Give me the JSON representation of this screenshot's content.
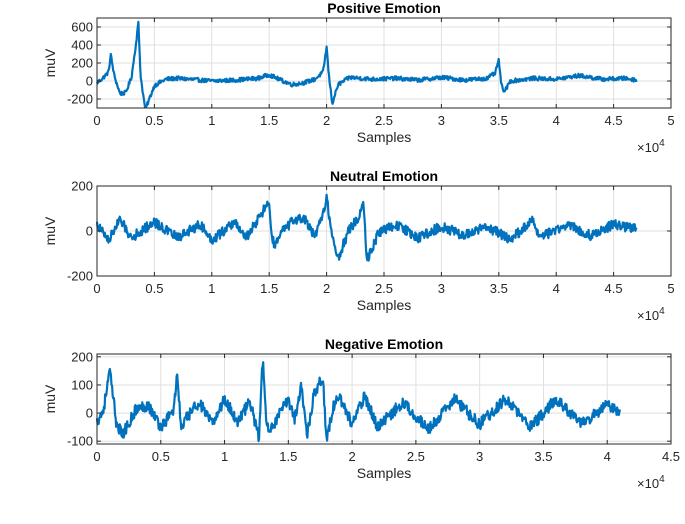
{
  "chart_data": [
    {
      "type": "line",
      "title": "Positive Emotion",
      "xlabel": "Samples",
      "ylabel": "muV",
      "x_multiplier": "×10",
      "x_multiplier_exp": "4",
      "xlim": [
        0,
        5
      ],
      "ylim": [
        -300,
        700
      ],
      "xticks": [
        "0",
        "0.5",
        "1",
        "1.5",
        "2",
        "2.5",
        "3",
        "3.5",
        "4",
        "4.5",
        "5"
      ],
      "yticks": [
        "-200",
        "0",
        "200",
        "400",
        "600"
      ],
      "grid": true,
      "color": "#0072BD",
      "series": [
        {
          "x_end": 4.7,
          "x": [
            0,
            0.05,
            0.1,
            0.12,
            0.15,
            0.2,
            0.25,
            0.3,
            0.34,
            0.36,
            0.38,
            0.42,
            0.5,
            0.6,
            0.7,
            0.8,
            1.0,
            1.2,
            1.4,
            1.5,
            1.6,
            1.7,
            1.8,
            1.9,
            1.97,
            2.0,
            2.02,
            2.05,
            2.1,
            2.2,
            2.4,
            2.6,
            2.8,
            3.0,
            3.2,
            3.4,
            3.47,
            3.5,
            3.52,
            3.55,
            3.6,
            3.8,
            4.0,
            4.2,
            4.4,
            4.6,
            4.7
          ],
          "y": [
            -20,
            30,
            100,
            290,
            60,
            -140,
            -130,
            40,
            420,
            650,
            50,
            -320,
            -50,
            20,
            30,
            20,
            0,
            10,
            30,
            70,
            10,
            -40,
            -20,
            20,
            100,
            380,
            60,
            -250,
            -40,
            40,
            20,
            30,
            10,
            40,
            10,
            30,
            90,
            240,
            -40,
            -120,
            0,
            30,
            20,
            60,
            20,
            30,
            10
          ]
        }
      ]
    },
    {
      "type": "line",
      "title": "Neutral Emotion",
      "xlabel": "Samples",
      "ylabel": "muV",
      "x_multiplier": "×10",
      "x_multiplier_exp": "4",
      "xlim": [
        0,
        5
      ],
      "ylim": [
        -200,
        200
      ],
      "xticks": [
        "0",
        "0.5",
        "1",
        "1.5",
        "2",
        "2.5",
        "3",
        "3.5",
        "4",
        "4.5",
        "5"
      ],
      "yticks": [
        "-200",
        "0",
        "200"
      ],
      "grid": true,
      "color": "#0072BD",
      "series": [
        {
          "x_end": 4.7,
          "x": [
            0,
            0.1,
            0.2,
            0.3,
            0.5,
            0.7,
            0.9,
            1.0,
            1.2,
            1.3,
            1.4,
            1.5,
            1.52,
            1.55,
            1.6,
            1.7,
            1.8,
            1.9,
            1.97,
            2.0,
            2.05,
            2.1,
            2.2,
            2.28,
            2.32,
            2.35,
            2.45,
            2.6,
            2.8,
            3.0,
            3.2,
            3.4,
            3.6,
            3.8,
            3.82,
            3.9,
            4.1,
            4.3,
            4.5,
            4.7
          ],
          "y": [
            30,
            -40,
            50,
            -30,
            40,
            -30,
            30,
            -40,
            40,
            -30,
            50,
            130,
            -20,
            -70,
            -10,
            40,
            60,
            -30,
            80,
            150,
            -30,
            -120,
            10,
            60,
            140,
            -130,
            -10,
            30,
            -30,
            20,
            -20,
            20,
            -40,
            50,
            -10,
            -20,
            30,
            -20,
            30,
            10
          ]
        }
      ]
    },
    {
      "type": "line",
      "title": "Negative Emotion",
      "xlabel": "Samples",
      "ylabel": "muV",
      "x_multiplier": "×10",
      "x_multiplier_exp": "4",
      "xlim": [
        0,
        4.5
      ],
      "ylim": [
        -110,
        210
      ],
      "xticks": [
        "0",
        "0.5",
        "1",
        "1.5",
        "2",
        "2.5",
        "3",
        "3.5",
        "4",
        "4.5"
      ],
      "yticks": [
        "-100",
        "0",
        "100",
        "200"
      ],
      "grid": true,
      "color": "#0072BD",
      "series": [
        {
          "x_end": 4.1,
          "x": [
            0,
            0.05,
            0.1,
            0.15,
            0.2,
            0.3,
            0.4,
            0.5,
            0.6,
            0.63,
            0.66,
            0.7,
            0.8,
            0.9,
            1.0,
            1.1,
            1.2,
            1.27,
            1.3,
            1.33,
            1.4,
            1.5,
            1.55,
            1.6,
            1.65,
            1.7,
            1.77,
            1.8,
            1.85,
            1.9,
            2.0,
            2.1,
            2.2,
            2.4,
            2.6,
            2.8,
            3.0,
            3.2,
            3.4,
            3.6,
            3.8,
            4.0,
            4.1
          ],
          "y": [
            -30,
            10,
            150,
            -30,
            -80,
            10,
            30,
            -50,
            10,
            140,
            -60,
            -20,
            40,
            -40,
            50,
            -30,
            40,
            -90,
            200,
            -60,
            -30,
            50,
            -20,
            100,
            -80,
            70,
            130,
            -100,
            20,
            60,
            -40,
            60,
            -50,
            40,
            -60,
            50,
            -40,
            50,
            -50,
            50,
            -40,
            30,
            0
          ]
        }
      ]
    }
  ]
}
